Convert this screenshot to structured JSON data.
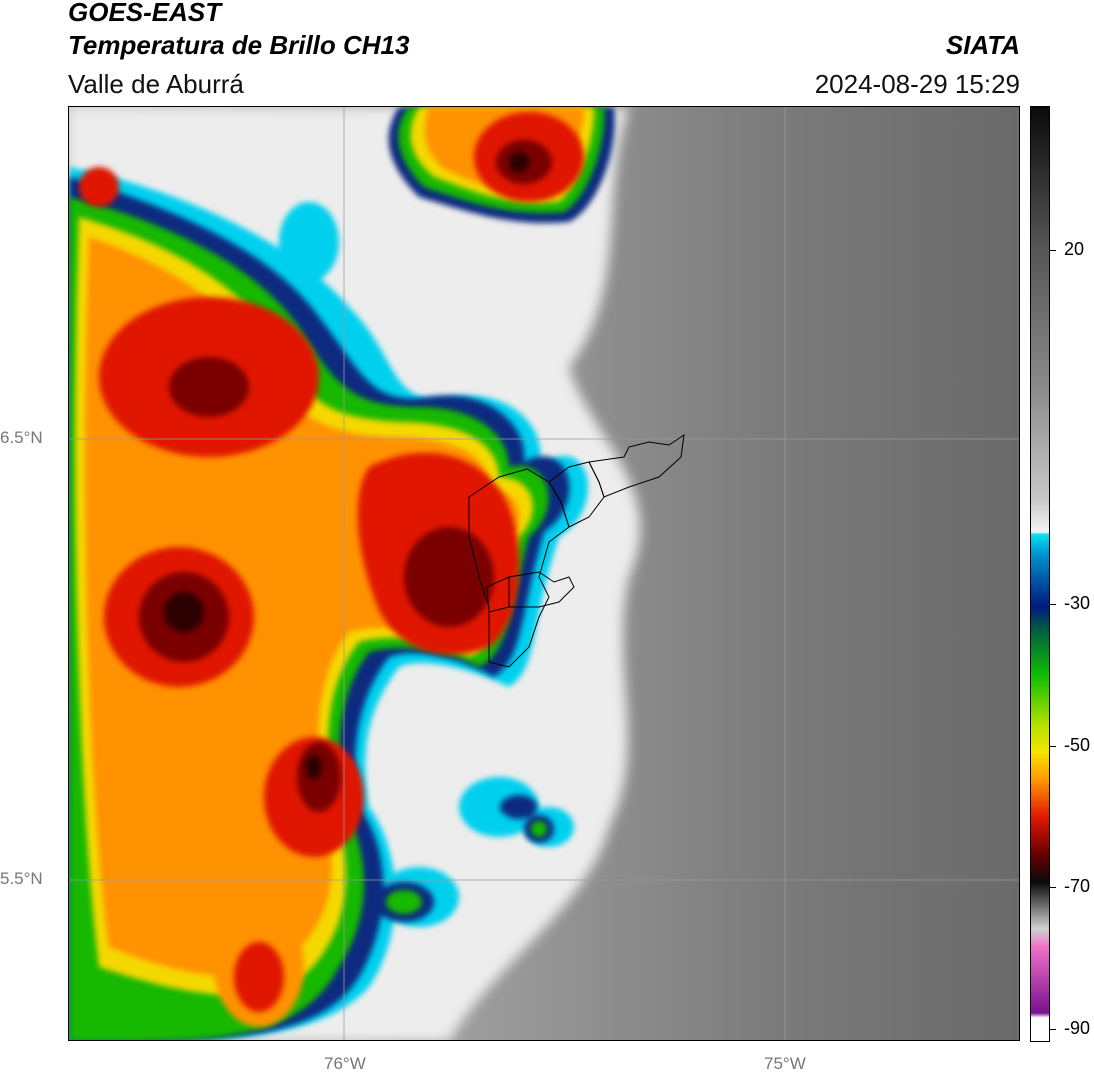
{
  "header": {
    "satellite": "GOES-EAST",
    "product": "Temperatura de Brillo CH13",
    "region": "Valle de Aburrá",
    "agency": "SIATA",
    "timestamp": "2024-08-29 15:29"
  },
  "map": {
    "lat_labels": [
      "6.5°N",
      "5.5°N"
    ],
    "lon_labels": [
      "76°W",
      "75°W"
    ],
    "gridlines": true
  },
  "colorbar": {
    "tick_labels": [
      "20",
      "-30",
      "-50",
      "-70",
      "-90"
    ]
  },
  "colors": {
    "clear_dark": "#6e6e6e",
    "clear_light": "#b8b8b8",
    "cloud_white": "#f2f2f2",
    "cyan": "#00d8f0",
    "navy": "#0a2a7a",
    "green": "#10c000",
    "yellow": "#f5e600",
    "orange": "#ff9600",
    "red": "#e01800",
    "darkred": "#700000"
  }
}
